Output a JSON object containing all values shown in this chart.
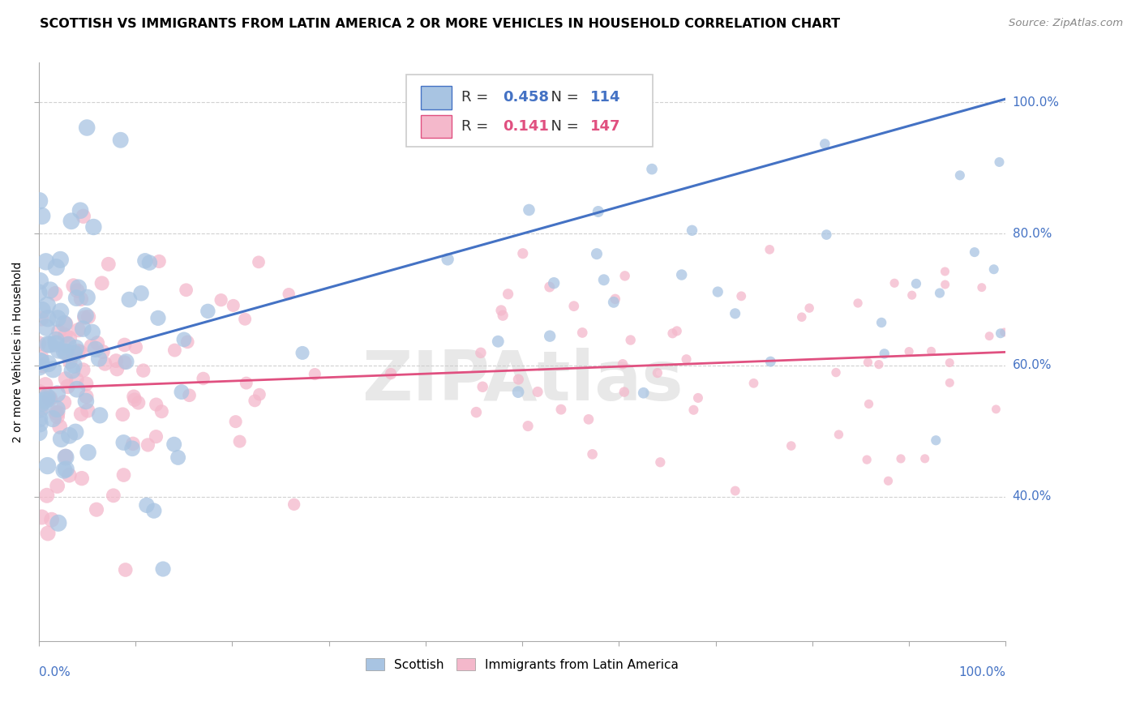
{
  "title": "SCOTTISH VS IMMIGRANTS FROM LATIN AMERICA 2 OR MORE VEHICLES IN HOUSEHOLD CORRELATION CHART",
  "source": "Source: ZipAtlas.com",
  "ylabel": "2 or more Vehicles in Household",
  "series1_label": "Scottish",
  "series1_R": "0.458",
  "series1_N": "114",
  "series1_color": "#a8c4e2",
  "series1_line_color": "#4472c4",
  "series2_label": "Immigrants from Latin America",
  "series2_R": "0.141",
  "series2_N": "147",
  "series2_color": "#f4b8cb",
  "series2_line_color": "#e05080",
  "xlim": [
    0.0,
    1.0
  ],
  "ylim": [
    0.18,
    1.06
  ],
  "ytick_labels": [
    "40.0%",
    "60.0%",
    "80.0%",
    "100.0%"
  ],
  "ytick_values": [
    0.4,
    0.6,
    0.8,
    1.0
  ],
  "line1_x0": 0.0,
  "line1_y0": 0.595,
  "line1_x1": 1.0,
  "line1_y1": 1.005,
  "line2_x0": 0.0,
  "line2_y0": 0.565,
  "line2_x1": 1.0,
  "line2_y1": 0.62,
  "watermark": "ZIPAtlas",
  "title_fontsize": 11.5,
  "source_fontsize": 9.5,
  "legend_fontsize": 13,
  "axis_label_fontsize": 10,
  "tick_label_fontsize": 11,
  "background_color": "#ffffff",
  "grid_color": "#cccccc"
}
